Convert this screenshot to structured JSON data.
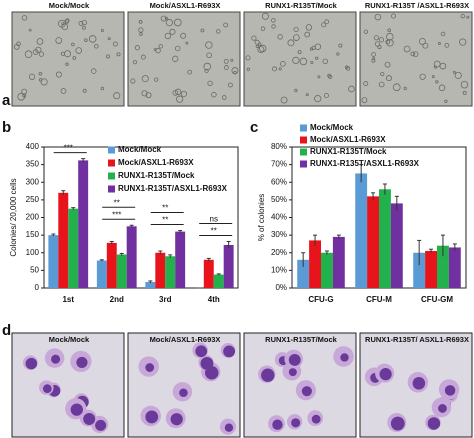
{
  "panel_labels": [
    "a",
    "b",
    "c",
    "d"
  ],
  "panel_a": {
    "images": [
      "Mock/Mock",
      "Mock/ASXL1-R693X",
      "RUNX1-R135T/Mock",
      "RUNX1-R135T /ASXL1-R693X"
    ]
  },
  "panel_d": {
    "images": [
      "Mock/Mock",
      "Mock/ASXL1-R693X",
      "RUNX1-R135T/Mock",
      "RUNX1-R135T/ ASXL1-R693X"
    ]
  },
  "chart_data": [
    {
      "type": "bar",
      "y_label": "Colonies/ 20,000 cells",
      "categories": [
        "1st",
        "2nd",
        "3rd",
        "4th"
      ],
      "ylim": [
        0,
        400
      ],
      "yticks": [
        0,
        50,
        100,
        150,
        200,
        250,
        300,
        350,
        400
      ],
      "series": [
        {
          "name": "Mock/Mock",
          "color": "#5b9bd5",
          "values": [
            150,
            78,
            17,
            0
          ],
          "errors": [
            3,
            2,
            3,
            0
          ]
        },
        {
          "name": "Mock/ASXL1-R693X",
          "color": "#e8141b",
          "values": [
            270,
            128,
            100,
            80
          ],
          "errors": [
            6,
            4,
            5,
            4
          ]
        },
        {
          "name": "RUNX1-R135T/Mock",
          "color": "#22b14c",
          "values": [
            225,
            95,
            90,
            38
          ],
          "errors": [
            3,
            3,
            4,
            2
          ]
        },
        {
          "name": "RUNX1-R135T/ASXL1-R693X",
          "color": "#7030a0",
          "values": [
            362,
            175,
            160,
            122
          ],
          "errors": [
            5,
            3,
            3,
            10
          ]
        }
      ],
      "significance": [
        [
          "***"
        ],
        [
          "**",
          "***"
        ],
        [
          "**",
          "**"
        ],
        [
          "ns",
          "**"
        ]
      ]
    },
    {
      "type": "bar",
      "y_label": "% of colonies",
      "categories": [
        "CFU-G",
        "CFU-M",
        "CFU-GM"
      ],
      "ylim": [
        0,
        80
      ],
      "yticks": [
        {
          "value": 0,
          "label": "0%"
        },
        {
          "value": 10,
          "label": "10%"
        },
        {
          "value": 20,
          "label": "20%"
        },
        {
          "value": 30,
          "label": "30%"
        },
        {
          "value": 40,
          "label": "40%"
        },
        {
          "value": 50,
          "label": "50%"
        },
        {
          "value": 60,
          "label": "60%"
        },
        {
          "value": 70,
          "label": "70%"
        },
        {
          "value": 80,
          "label": "80%"
        }
      ],
      "series": [
        {
          "name": "Mock/Mock",
          "color": "#5b9bd5",
          "values": [
            16,
            65,
            20
          ],
          "errors": [
            4,
            5,
            7
          ]
        },
        {
          "name": "Mock/ASXL1-R693X",
          "color": "#e8141b",
          "values": [
            27,
            52,
            21
          ],
          "errors": [
            3,
            2,
            1
          ]
        },
        {
          "name": "RUNX1-R135T/Mock",
          "color": "#22b14c",
          "values": [
            20,
            56,
            24
          ],
          "errors": [
            1,
            3,
            6
          ]
        },
        {
          "name": "RUNX1-R135T/ASXL1-R693X",
          "color": "#7030a0",
          "values": [
            29,
            48,
            23
          ],
          "errors": [
            1,
            4,
            2
          ]
        }
      ]
    }
  ]
}
